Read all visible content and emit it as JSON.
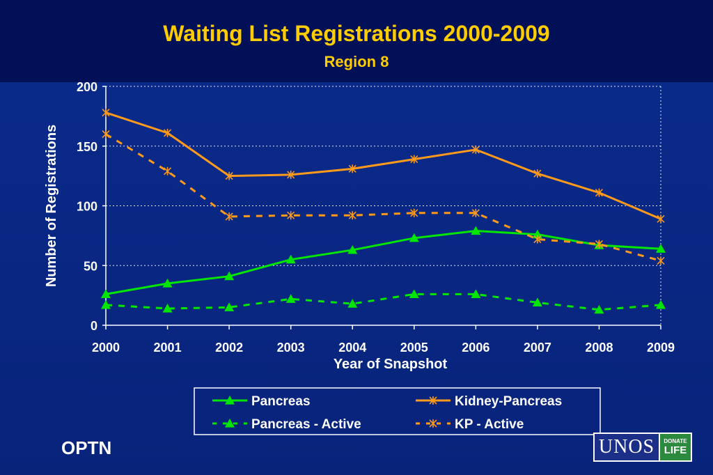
{
  "header": {
    "title": "Waiting List Registrations 2000-2009",
    "subtitle": "Region 8"
  },
  "footer": {
    "optn_label": "OPTN",
    "logo_text": "UNOS",
    "logo_badge_line1": "DONATE",
    "logo_badge_line2": "LIFE"
  },
  "colors": {
    "title": "#ffcc00",
    "pancreas": "#00e600",
    "kidney_pancreas": "#ff9a1a",
    "axis_text": "#ffffff",
    "grid": "#ffffff"
  },
  "chart_data": {
    "type": "line",
    "title": "Waiting List Registrations 2000-2009",
    "subtitle": "Region 8",
    "xlabel": "Year of Snapshot",
    "ylabel": "Number of Registrations",
    "categories": [
      "2000",
      "2001",
      "2002",
      "2003",
      "2004",
      "2005",
      "2006",
      "2007",
      "2008",
      "2009"
    ],
    "ylim": [
      0,
      200
    ],
    "yticks": [
      0,
      50,
      100,
      150,
      200
    ],
    "grid": "horizontal dotted",
    "legend_placement": "bottom",
    "series": [
      {
        "name": "Pancreas",
        "values": [
          26,
          35,
          41,
          55,
          63,
          73,
          79,
          76,
          67,
          64
        ],
        "color": "#00e600",
        "marker": "triangle",
        "dash": "solid"
      },
      {
        "name": "Kidney-Pancreas",
        "values": [
          178,
          161,
          125,
          126,
          131,
          139,
          147,
          127,
          111,
          89
        ],
        "color": "#ff9a1a",
        "marker": "asterisk",
        "dash": "solid"
      },
      {
        "name": "Pancreas - Active",
        "values": [
          17,
          14,
          15,
          22,
          18,
          26,
          26,
          19,
          13,
          17
        ],
        "color": "#00e600",
        "marker": "triangle",
        "dash": "dashed"
      },
      {
        "name": "KP - Active",
        "values": [
          160,
          129,
          91,
          92,
          92,
          94,
          94,
          72,
          68,
          54
        ],
        "color": "#ff9a1a",
        "marker": "asterisk",
        "dash": "dashed"
      }
    ]
  }
}
